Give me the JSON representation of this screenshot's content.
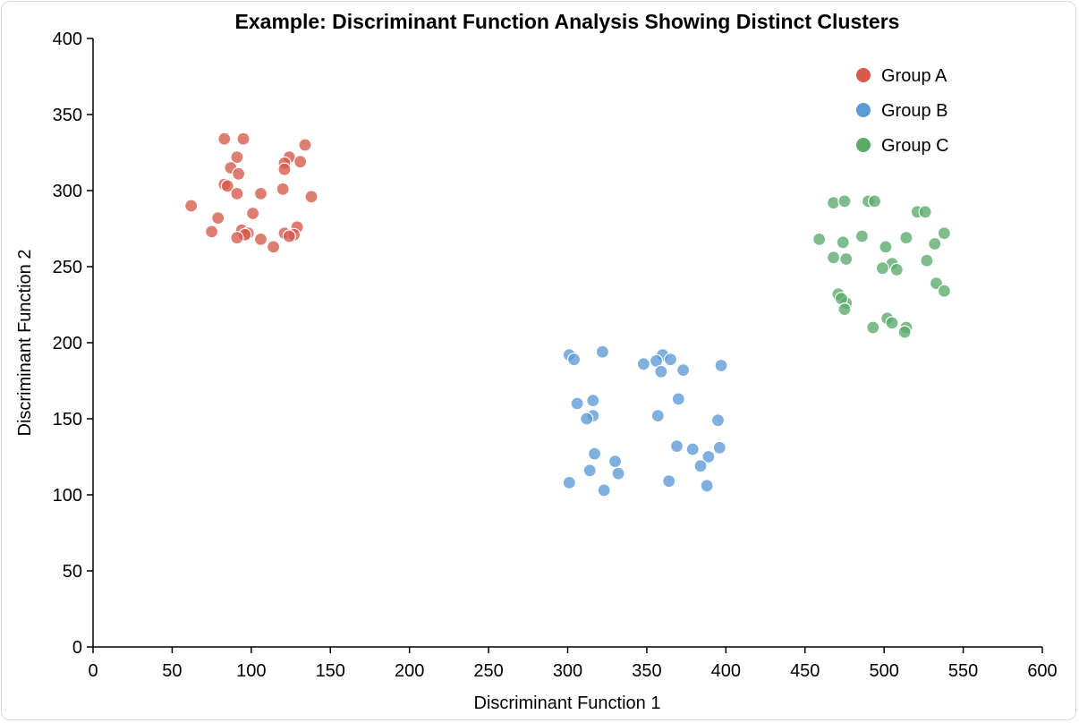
{
  "chart_data": {
    "type": "scatter",
    "title": "Example: Discriminant Function Analysis Showing Distinct Clusters",
    "xlabel": "Discriminant Function 1",
    "ylabel": "Discriminant Function 2",
    "xlim": [
      0,
      600
    ],
    "ylim": [
      0,
      400
    ],
    "xticks": [
      "0",
      "50",
      "100",
      "150",
      "200",
      "250",
      "300",
      "350",
      "400",
      "450",
      "500",
      "550",
      "600"
    ],
    "yticks": [
      "0",
      "50",
      "100",
      "150",
      "200",
      "250",
      "300",
      "350",
      "400"
    ],
    "grid": false,
    "legend": "top-right",
    "series": [
      {
        "name": "Group A",
        "color": "#d55a4a",
        "points": [
          [
            83,
            334
          ],
          [
            95,
            334
          ],
          [
            134,
            330
          ],
          [
            91,
            322
          ],
          [
            124,
            322
          ],
          [
            131,
            319
          ],
          [
            121,
            318
          ],
          [
            87,
            315
          ],
          [
            121,
            314
          ],
          [
            92,
            311
          ],
          [
            83,
            304
          ],
          [
            85,
            303
          ],
          [
            120,
            301
          ],
          [
            91,
            298
          ],
          [
            106,
            298
          ],
          [
            138,
            296
          ],
          [
            62,
            290
          ],
          [
            101,
            285
          ],
          [
            79,
            282
          ],
          [
            129,
            276
          ],
          [
            94,
            274
          ],
          [
            98,
            272
          ],
          [
            75,
            273
          ],
          [
            121,
            272
          ],
          [
            96,
            271
          ],
          [
            127,
            271
          ],
          [
            124,
            270
          ],
          [
            91,
            269
          ],
          [
            106,
            268
          ],
          [
            114,
            263
          ]
        ]
      },
      {
        "name": "Group B",
        "color": "#5b9ad5",
        "points": [
          [
            322,
            194
          ],
          [
            301,
            192
          ],
          [
            360,
            192
          ],
          [
            304,
            189
          ],
          [
            365,
            189
          ],
          [
            356,
            188
          ],
          [
            348,
            186
          ],
          [
            397,
            185
          ],
          [
            373,
            182
          ],
          [
            359,
            181
          ],
          [
            316,
            162
          ],
          [
            370,
            163
          ],
          [
            306,
            160
          ],
          [
            316,
            152
          ],
          [
            357,
            152
          ],
          [
            312,
            150
          ],
          [
            395,
            149
          ],
          [
            396,
            131
          ],
          [
            369,
            132
          ],
          [
            379,
            130
          ],
          [
            317,
            127
          ],
          [
            389,
            125
          ],
          [
            330,
            122
          ],
          [
            384,
            119
          ],
          [
            314,
            116
          ],
          [
            332,
            114
          ],
          [
            301,
            108
          ],
          [
            364,
            109
          ],
          [
            388,
            106
          ],
          [
            323,
            103
          ]
        ]
      },
      {
        "name": "Group C",
        "color": "#5aab6a",
        "points": [
          [
            468,
            292
          ],
          [
            475,
            293
          ],
          [
            490,
            293
          ],
          [
            494,
            293
          ],
          [
            521,
            286
          ],
          [
            526,
            286
          ],
          [
            459,
            268
          ],
          [
            474,
            266
          ],
          [
            486,
            270
          ],
          [
            501,
            263
          ],
          [
            514,
            269
          ],
          [
            532,
            265
          ],
          [
            538,
            272
          ],
          [
            468,
            256
          ],
          [
            476,
            255
          ],
          [
            505,
            252
          ],
          [
            499,
            249
          ],
          [
            508,
            248
          ],
          [
            527,
            254
          ],
          [
            533,
            239
          ],
          [
            538,
            234
          ],
          [
            471,
            232
          ],
          [
            476,
            226
          ],
          [
            473,
            229
          ],
          [
            475,
            222
          ],
          [
            502,
            216
          ],
          [
            505,
            213
          ],
          [
            493,
            210
          ],
          [
            514,
            210
          ],
          [
            513,
            207
          ]
        ]
      }
    ]
  }
}
